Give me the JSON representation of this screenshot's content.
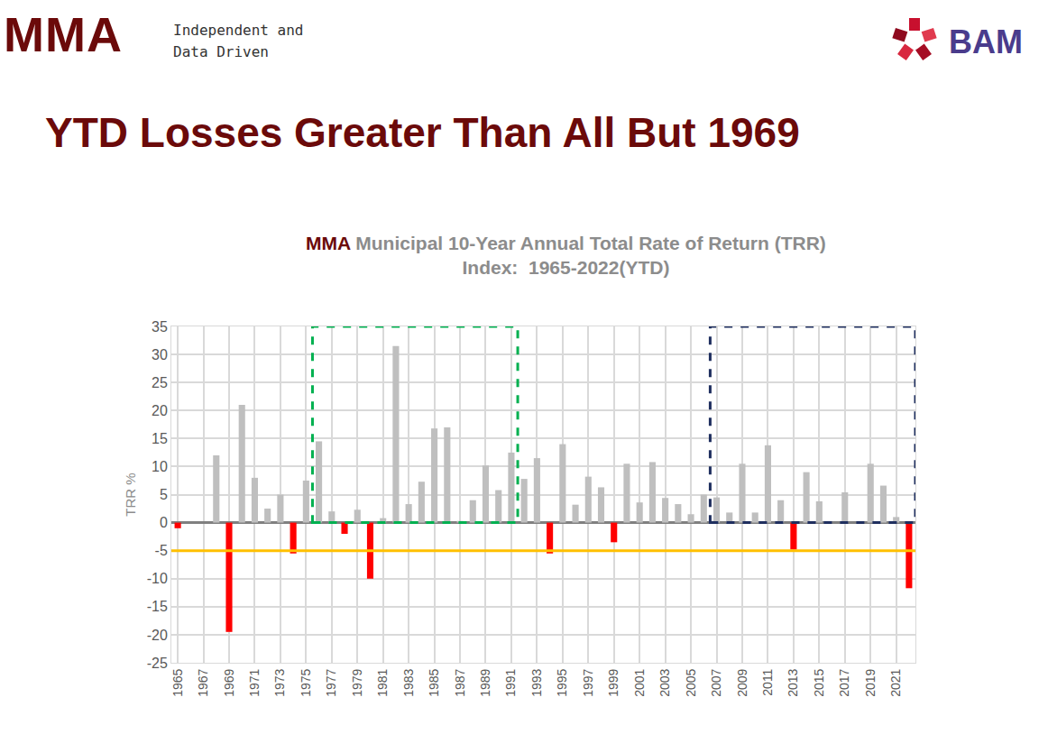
{
  "header": {
    "brand": "MMA",
    "tagline": [
      "Independent and",
      "Data Driven"
    ],
    "logo": "BAM",
    "headline": "YTD Losses Greater Than All But 1969"
  },
  "chart_data": {
    "type": "bar",
    "title_brand": "MMA",
    "title": "Municipal 10-Year Annual Total Rate of Return (TRR)",
    "subtitle": "Index:  1965-2022(YTD)",
    "y_label": "TRR %",
    "x": [
      1965,
      1966,
      1967,
      1968,
      1969,
      1970,
      1971,
      1972,
      1973,
      1974,
      1975,
      1976,
      1977,
      1978,
      1979,
      1980,
      1981,
      1982,
      1983,
      1984,
      1985,
      1986,
      1987,
      1988,
      1989,
      1990,
      1991,
      1992,
      1993,
      1994,
      1995,
      1996,
      1997,
      1998,
      1999,
      2000,
      2001,
      2002,
      2003,
      2004,
      2005,
      2006,
      2007,
      2008,
      2009,
      2010,
      2011,
      2012,
      2013,
      2014,
      2015,
      2016,
      2017,
      2018,
      2019,
      2020,
      2021,
      2022
    ],
    "values": [
      -1,
      0,
      0,
      12,
      -19.5,
      21,
      8,
      2.5,
      5,
      -5.5,
      7.5,
      14.5,
      2,
      -2,
      2.3,
      -10,
      0.8,
      31.5,
      3.3,
      7.3,
      16.8,
      17,
      0.3,
      4,
      10.2,
      5.8,
      12.5,
      7.8,
      11.5,
      -5.5,
      14,
      3.2,
      8.2,
      6.3,
      -3.5,
      10.5,
      3.6,
      10.8,
      4.4,
      3.3,
      1.5,
      5,
      4.5,
      1.8,
      10.5,
      1.8,
      13.8,
      4,
      -4.8,
      9,
      3.8,
      0,
      5.4,
      0,
      10.5,
      6.6,
      1,
      -11.7
    ],
    "colors": [
      "#ff0000",
      "#bfbfbf",
      "#bfbfbf",
      "#bfbfbf",
      "#ff0000",
      "#bfbfbf",
      "#bfbfbf",
      "#bfbfbf",
      "#bfbfbf",
      "#ff0000",
      "#bfbfbf",
      "#bfbfbf",
      "#bfbfbf",
      "#ff0000",
      "#bfbfbf",
      "#ff0000",
      "#bfbfbf",
      "#bfbfbf",
      "#bfbfbf",
      "#bfbfbf",
      "#bfbfbf",
      "#bfbfbf",
      "#bfbfbf",
      "#bfbfbf",
      "#bfbfbf",
      "#bfbfbf",
      "#bfbfbf",
      "#bfbfbf",
      "#bfbfbf",
      "#ff0000",
      "#bfbfbf",
      "#bfbfbf",
      "#bfbfbf",
      "#bfbfbf",
      "#ff0000",
      "#bfbfbf",
      "#bfbfbf",
      "#bfbfbf",
      "#bfbfbf",
      "#bfbfbf",
      "#bfbfbf",
      "#bfbfbf",
      "#bfbfbf",
      "#bfbfbf",
      "#bfbfbf",
      "#bfbfbf",
      "#bfbfbf",
      "#bfbfbf",
      "#ff0000",
      "#bfbfbf",
      "#bfbfbf",
      "#bfbfbf",
      "#bfbfbf",
      "#bfbfbf",
      "#bfbfbf",
      "#bfbfbf",
      "#bfbfbf",
      "#ff0000"
    ],
    "xlim": [
      1964.5,
      2022.5
    ],
    "xticks": [
      1965,
      1967,
      1969,
      1971,
      1973,
      1975,
      1977,
      1979,
      1981,
      1983,
      1985,
      1987,
      1989,
      1991,
      1993,
      1995,
      1997,
      1999,
      2001,
      2003,
      2005,
      2007,
      2009,
      2011,
      2013,
      2015,
      2017,
      2019,
      2021
    ],
    "ylim": [
      -25,
      35
    ],
    "yticks": [
      -25,
      -20,
      -15,
      -10,
      -5,
      0,
      5,
      10,
      15,
      20,
      25,
      30,
      35
    ],
    "reference_line": -5,
    "highlight_periods": [
      {
        "start": 1976,
        "end": 1991
      },
      {
        "start": 2007,
        "end": 2022
      }
    ],
    "grid": true
  }
}
